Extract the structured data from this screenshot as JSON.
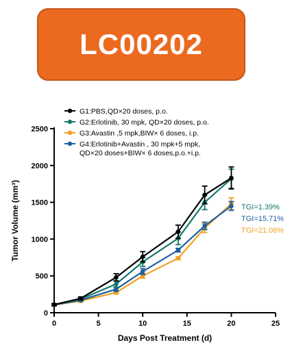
{
  "banner": {
    "title": "LC00202",
    "color": "#ec6a1f"
  },
  "chart_data": {
    "type": "line",
    "xlabel": "Days Post Treatment (d)",
    "ylabel": "Tumor Volume (mm³)",
    "xlim": [
      0,
      25
    ],
    "ylim": [
      0,
      2500
    ],
    "xticks": [
      0,
      5,
      10,
      15,
      20,
      25
    ],
    "yticks": [
      0,
      500,
      1000,
      1500,
      2000,
      2500
    ],
    "x": [
      0,
      3,
      7,
      10,
      14,
      17,
      20
    ],
    "series": [
      {
        "name": "G1:PBS,QD×20 doses, p.o.",
        "name_lines": [
          "G1:PBS,QD×20 doses, p.o."
        ],
        "color": "#000000",
        "values": [
          110,
          195,
          480,
          760,
          1100,
          1600,
          1830
        ],
        "errors": [
          15,
          20,
          50,
          70,
          90,
          120,
          150
        ]
      },
      {
        "name": "G2:Erlotinib, 30 mpk, QD×20 doses, p.o.",
        "name_lines": [
          "G2:Erlotinib, 30 mpk, QD×20 doses, p.o."
        ],
        "color": "#12786b",
        "values": [
          108,
          185,
          390,
          690,
          1010,
          1500,
          1820
        ],
        "errors": [
          15,
          20,
          45,
          60,
          85,
          100,
          130
        ]
      },
      {
        "name": "G3:Avastin ,5 mpk,BIW× 6 doses, i.p.",
        "name_lines": [
          "G3:Avastin ,5 mpk,BIW× 6 doses, i.p."
        ],
        "color": "#f0a020",
        "values": [
          105,
          160,
          275,
          500,
          740,
          1150,
          1480
        ],
        "errors": [
          12,
          15,
          20,
          30,
          20,
          60,
          80
        ]
      },
      {
        "name": "G4:Erlotinib+Avastin , 30 mpk+5 mpk, QD×20 doses+BIW× 6 doses,p.o.+i.p.",
        "name_lines": [
          "G4:Erlotinib+Avastin , 30 mpk+5 mpk,",
          "QD×20 doses+BIW× 6 doses,p.o.+i.p."
        ],
        "color": "#1e5fa0",
        "values": [
          106,
          170,
          320,
          560,
          850,
          1180,
          1450
        ],
        "errors": [
          12,
          15,
          30,
          40,
          25,
          50,
          60
        ]
      }
    ],
    "annotations": [
      {
        "text": "TGI=1.39%",
        "color": "#12786b"
      },
      {
        "text": "TGI=15.71%",
        "color": "#1e5fa0"
      },
      {
        "text": "TGI=21.06%",
        "color": "#f0a020"
      }
    ],
    "legend": "top-left",
    "grid": false
  }
}
